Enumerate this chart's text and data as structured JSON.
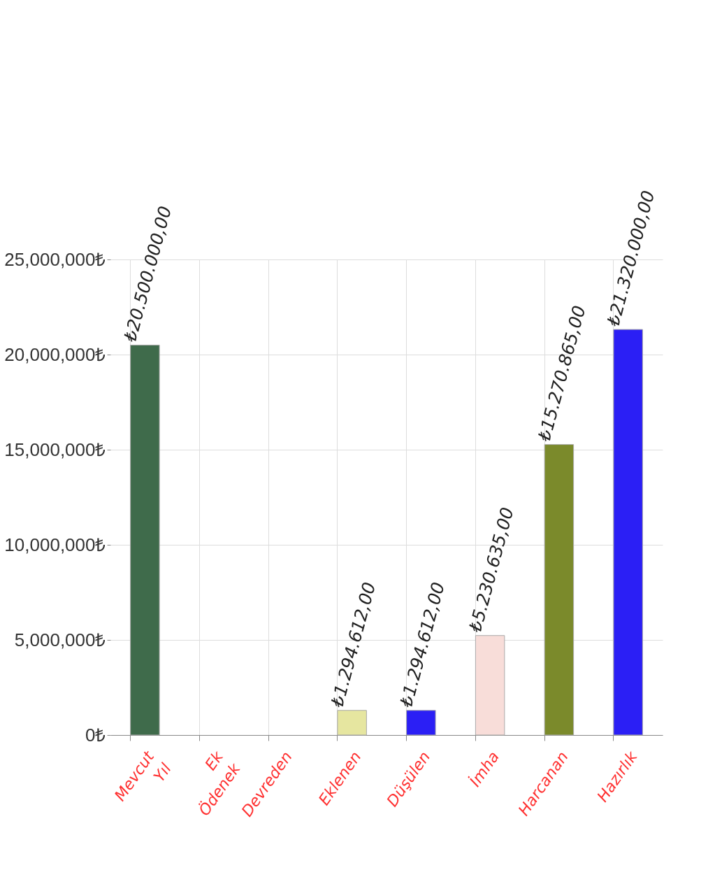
{
  "chart_data": {
    "type": "bar",
    "categories": [
      "Mevcut Yıl",
      "Ek Ödenek",
      "Devreden",
      "Eklenen",
      "Düşülen",
      "İmha",
      "Harcanan",
      "Hazırlık"
    ],
    "values": [
      20500000,
      null,
      null,
      1294612,
      1294612,
      5230635,
      15270865,
      21320000
    ],
    "colors": [
      "#3f6b4b",
      "#3f6b4b",
      "#3f6b4b",
      "#e6e6a0",
      "#2b1ff5",
      "#f8ddd9",
      "#7b8a2b",
      "#2b1ff5"
    ],
    "value_labels": [
      "₺20.500.000,00",
      null,
      null,
      "₺1.294.612,00",
      "₺1.294.612,00",
      "₺5.230.635,00",
      "₺15.270.865,00",
      "₺21.320.000,00"
    ],
    "ylim": [
      0,
      25000000
    ],
    "yticks": [
      {
        "value": 0,
        "label": "0₺"
      },
      {
        "value": 5000000,
        "label": "5,000,000₺"
      },
      {
        "value": 10000000,
        "label": "10,000,000₺"
      },
      {
        "value": 15000000,
        "label": "15,000,000₺"
      },
      {
        "value": 20000000,
        "label": "20,000,000₺"
      },
      {
        "value": 25000000,
        "label": "25,000,000₺"
      }
    ],
    "grid": true
  }
}
